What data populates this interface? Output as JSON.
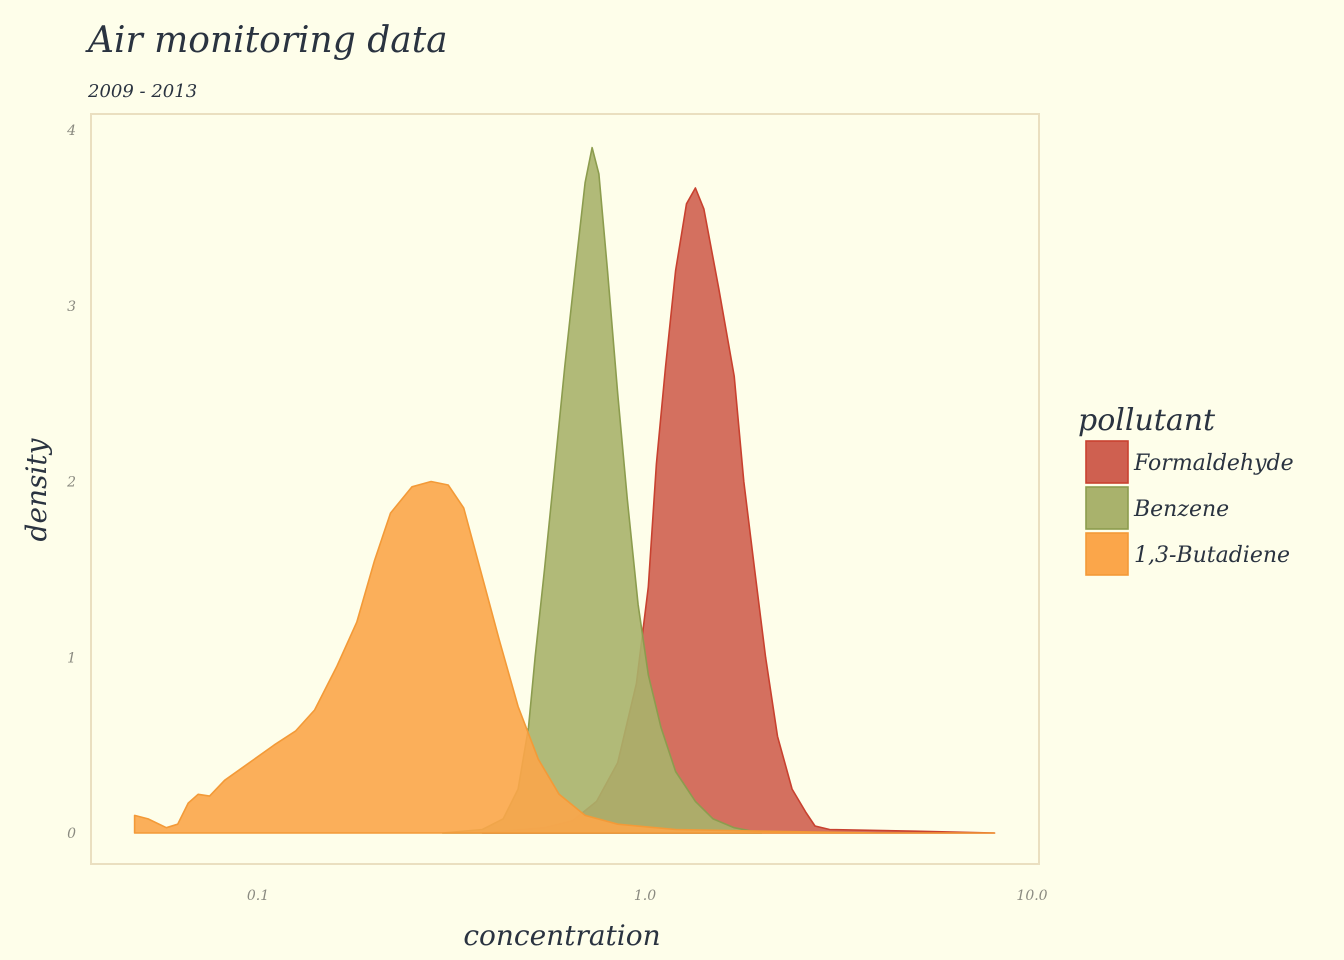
{
  "title": "Air monitoring data",
  "subtitle": "2009 - 2013",
  "chart_data": {
    "type": "area",
    "title": "Air monitoring data",
    "subtitle": "2009 - 2013",
    "xlabel": "concentration",
    "ylabel": "density",
    "x_scale": "log10",
    "xlim": [
      0.04,
      10
    ],
    "ylim": [
      0,
      4
    ],
    "x_ticks": [
      {
        "value": 0.1,
        "label": "0.1"
      },
      {
        "value": 1.0,
        "label": "1.0"
      },
      {
        "value": 10.0,
        "label": "10.0"
      }
    ],
    "y_ticks": [
      {
        "value": 0,
        "label": "0"
      },
      {
        "value": 1,
        "label": "1"
      },
      {
        "value": 2,
        "label": "2"
      },
      {
        "value": 3,
        "label": "3"
      },
      {
        "value": 4,
        "label": "4"
      }
    ],
    "grid": false,
    "legend": {
      "title": "pollutant",
      "position": "right"
    },
    "series": [
      {
        "name": "Formaldehyde",
        "color": "#c8412f",
        "fill": "#cf6050",
        "points": [
          [
            0.38,
            0.0
          ],
          [
            0.55,
            0.03
          ],
          [
            0.65,
            0.07
          ],
          [
            0.75,
            0.18
          ],
          [
            0.85,
            0.4
          ],
          [
            0.95,
            0.85
          ],
          [
            1.02,
            1.4
          ],
          [
            1.07,
            2.1
          ],
          [
            1.13,
            2.65
          ],
          [
            1.2,
            3.2
          ],
          [
            1.28,
            3.58
          ],
          [
            1.35,
            3.67
          ],
          [
            1.42,
            3.55
          ],
          [
            1.55,
            3.1
          ],
          [
            1.7,
            2.6
          ],
          [
            1.8,
            2.0
          ],
          [
            1.92,
            1.5
          ],
          [
            2.05,
            1.0
          ],
          [
            2.2,
            0.55
          ],
          [
            2.4,
            0.25
          ],
          [
            2.6,
            0.12
          ],
          [
            2.75,
            0.04
          ],
          [
            3.0,
            0.02
          ],
          [
            5.0,
            0.01
          ],
          [
            8.0,
            0.0
          ]
        ]
      },
      {
        "name": "Benzene",
        "color": "#8c9c4e",
        "fill": "#a9b26c",
        "points": [
          [
            0.3,
            0.0
          ],
          [
            0.38,
            0.02
          ],
          [
            0.43,
            0.08
          ],
          [
            0.47,
            0.25
          ],
          [
            0.5,
            0.6
          ],
          [
            0.52,
            1.0
          ],
          [
            0.55,
            1.5
          ],
          [
            0.58,
            2.0
          ],
          [
            0.62,
            2.65
          ],
          [
            0.66,
            3.2
          ],
          [
            0.7,
            3.7
          ],
          [
            0.73,
            3.9
          ],
          [
            0.76,
            3.75
          ],
          [
            0.8,
            3.2
          ],
          [
            0.85,
            2.5
          ],
          [
            0.9,
            1.9
          ],
          [
            0.96,
            1.3
          ],
          [
            1.02,
            0.9
          ],
          [
            1.1,
            0.6
          ],
          [
            1.2,
            0.35
          ],
          [
            1.35,
            0.18
          ],
          [
            1.5,
            0.08
          ],
          [
            1.7,
            0.03
          ],
          [
            2.0,
            0.0
          ]
        ]
      },
      {
        "name": "1,3-Butadiene",
        "color": "#f39a38",
        "fill": "#fba64a",
        "points": [
          [
            0.048,
            0.1
          ],
          [
            0.052,
            0.08
          ],
          [
            0.058,
            0.03
          ],
          [
            0.062,
            0.05
          ],
          [
            0.066,
            0.17
          ],
          [
            0.07,
            0.22
          ],
          [
            0.075,
            0.21
          ],
          [
            0.082,
            0.3
          ],
          [
            0.095,
            0.4
          ],
          [
            0.11,
            0.5
          ],
          [
            0.125,
            0.58
          ],
          [
            0.14,
            0.7
          ],
          [
            0.16,
            0.95
          ],
          [
            0.18,
            1.2
          ],
          [
            0.2,
            1.55
          ],
          [
            0.22,
            1.82
          ],
          [
            0.25,
            1.97
          ],
          [
            0.28,
            2.0
          ],
          [
            0.31,
            1.98
          ],
          [
            0.34,
            1.85
          ],
          [
            0.37,
            1.55
          ],
          [
            0.42,
            1.1
          ],
          [
            0.47,
            0.72
          ],
          [
            0.53,
            0.42
          ],
          [
            0.6,
            0.22
          ],
          [
            0.7,
            0.1
          ],
          [
            0.85,
            0.05
          ],
          [
            1.2,
            0.02
          ],
          [
            2.0,
            0.01
          ],
          [
            4.0,
            0.0
          ],
          [
            8.0,
            0.0
          ]
        ]
      }
    ]
  }
}
